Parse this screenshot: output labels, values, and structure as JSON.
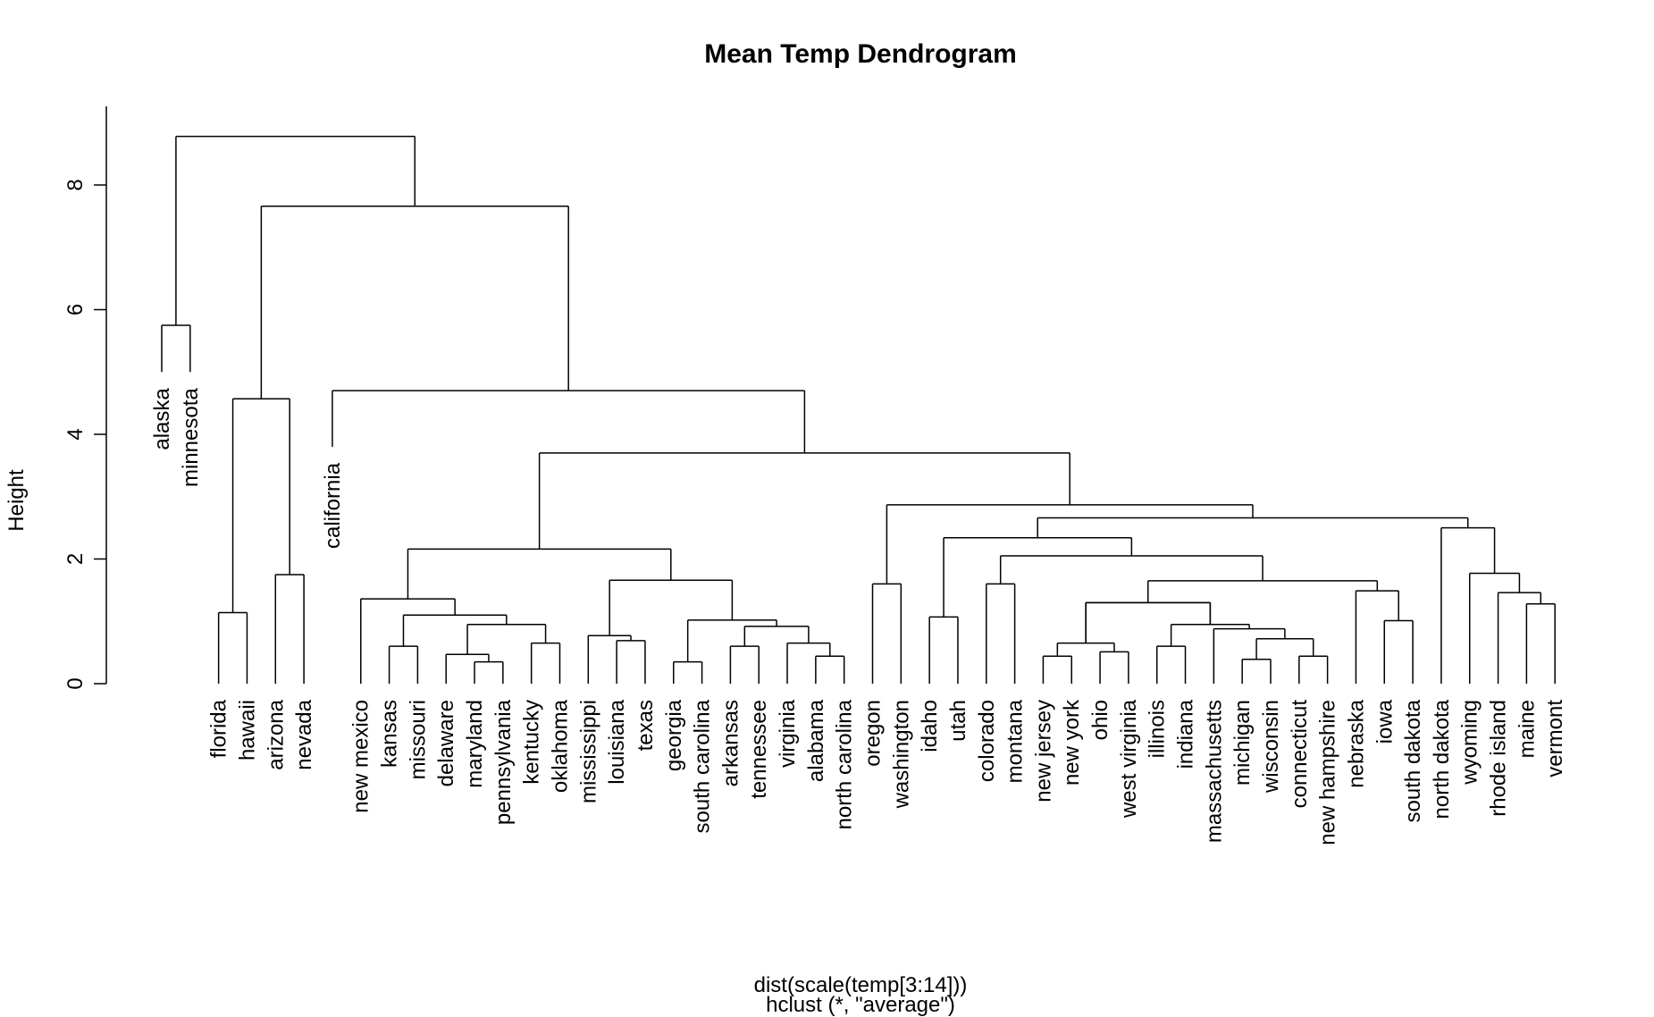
{
  "chart_data": {
    "type": "dendrogram",
    "title": "Mean Temp Dendrogram",
    "ylabel": "Height",
    "xlabel_lines": [
      "dist(scale(temp[3:14]))",
      "hclust (*, \"average\")"
    ],
    "ylim": [
      0,
      9.2
    ],
    "yticks": [
      0,
      2,
      4,
      6,
      8
    ],
    "leaves": [
      "alaska",
      "minnesota",
      "florida",
      "hawaii",
      "arizona",
      "nevada",
      "california",
      "new mexico",
      "kansas",
      "missouri",
      "delaware",
      "maryland",
      "pennsylvania",
      "kentucky",
      "oklahoma",
      "mississippi",
      "louisiana",
      "texas",
      "georgia",
      "south carolina",
      "arkansas",
      "tennessee",
      "virginia",
      "alabama",
      "north carolina",
      "oregon",
      "washington",
      "idaho",
      "utah",
      "colorado",
      "montana",
      "new jersey",
      "new york",
      "ohio",
      "west virginia",
      "illinois",
      "indiana",
      "massachusetts",
      "michigan",
      "wisconsin",
      "connecticut",
      "new hampshire",
      "nebraska",
      "iowa",
      "south dakota",
      "north dakota",
      "wyoming",
      "rhode island",
      "maine",
      "vermont"
    ],
    "merges": [
      {
        "a": "maryland",
        "b": "pennsylvania",
        "height": 0.35
      },
      {
        "a": "georgia",
        "b": "south carolina",
        "height": 0.35
      },
      {
        "a": "michigan",
        "b": "wisconsin",
        "height": 0.39
      },
      {
        "a": "alabama",
        "b": "north carolina",
        "height": 0.44
      },
      {
        "a": "new jersey",
        "b": "new york",
        "height": 0.44
      },
      {
        "a": "connecticut",
        "b": "new hampshire",
        "height": 0.44
      },
      {
        "a": "delaware",
        "b": "maryland+pennsylvania",
        "height": 0.47
      },
      {
        "a": "ohio",
        "b": "west virginia",
        "height": 0.51
      },
      {
        "a": "arkansas",
        "b": "tennessee",
        "height": 0.6
      },
      {
        "a": "kansas",
        "b": "missouri",
        "height": 0.6
      },
      {
        "a": "illinois",
        "b": "indiana",
        "height": 0.6
      },
      {
        "a": "kentucky",
        "b": "oklahoma",
        "height": 0.65
      },
      {
        "a": "virginia",
        "b": "alabama+north carolina",
        "height": 0.65
      },
      {
        "a": "new jersey+new york",
        "b": "ohio+west virginia",
        "height": 0.65
      },
      {
        "a": "louisiana",
        "b": "texas",
        "height": 0.69
      },
      {
        "a": "michigan+wisconsin",
        "b": "connecticut+new hampshire",
        "height": 0.72
      },
      {
        "a": "mississippi",
        "b": "louisiana+texas",
        "height": 0.77
      },
      {
        "a": "massachusetts",
        "b": "michigan+wisconsin+connecticut+new hampshire",
        "height": 0.88
      },
      {
        "a": "arkansas+tennessee",
        "b": "virginia+alabama+north carolina",
        "height": 0.92
      },
      {
        "a": "delaware+maryland+pennsylvania",
        "b": "kentucky+oklahoma",
        "height": 0.95
      },
      {
        "a": "illinois+indiana",
        "b": "massachusetts+michigan+wisconsin+connecticut+new hampshire",
        "height": 0.95
      },
      {
        "a": "iowa",
        "b": "south dakota",
        "height": 1.01
      },
      {
        "a": "georgia+south carolina",
        "b": "arkansas+tennessee+virginia+alabama+north carolina",
        "height": 1.02
      },
      {
        "a": "idaho",
        "b": "utah",
        "height": 1.07
      },
      {
        "a": "kansas+missouri",
        "b": "delaware+maryland+pennsylvania+kentucky+oklahoma",
        "height": 1.1
      },
      {
        "a": "maine",
        "b": "vermont",
        "height": 1.28
      },
      {
        "a": "new jersey+new york+ohio+west virginia",
        "b": "illinois+indiana+massachusetts+michigan+wisconsin+connecticut+new hampshire",
        "height": 1.3
      },
      {
        "a": "nevada",
        "b": "arizona",
        "height": 1.75
      },
      {
        "a": "florida",
        "b": "hawaii",
        "height": 1.14
      },
      {
        "a": "new mexico",
        "b": "kansas+missouri+delaware+maryland+pennsylvania+kentucky+oklahoma",
        "height": 1.36
      },
      {
        "a": "rhode island",
        "b": "maine+vermont",
        "height": 1.46
      },
      {
        "a": "nebraska",
        "b": "iowa+south dakota",
        "height": 1.49
      },
      {
        "a": "oregon",
        "b": "washington",
        "height": 1.6
      },
      {
        "a": "colorado",
        "b": "montana",
        "height": 1.6
      },
      {
        "a": "nebraska+iowa+south dakota",
        "b": "new jersey+...+new hampshire",
        "height": 1.65
      },
      {
        "a": "mississippi+louisiana+texas",
        "b": "georgia+...+north carolina",
        "height": 1.66
      },
      {
        "a": "wyoming",
        "b": "rhode island+maine+vermont",
        "height": 1.77
      },
      {
        "a": "colorado+montana",
        "b": "new jersey+...+south dakota",
        "height": 2.05
      },
      {
        "a": "new mexico+...+oklahoma",
        "b": "mississippi+...+north carolina",
        "height": 2.16
      },
      {
        "a": "idaho+utah",
        "b": "colorado+...+south dakota",
        "height": 2.34
      },
      {
        "a": "north dakota",
        "b": "wyoming+rhode island+maine+vermont",
        "height": 2.5
      },
      {
        "a": "idaho+...+south dakota",
        "b": "north dakota+...+vermont",
        "height": 2.66
      },
      {
        "a": "oregon+washington",
        "b": "idaho+...+vermont",
        "height": 2.87
      },
      {
        "a": "new mexico+...+north carolina",
        "b": "oregon+...+vermont",
        "height": 3.7
      },
      {
        "a": "florida+hawaii",
        "b": "arizona+nevada",
        "height": 4.57
      },
      {
        "a": "california",
        "b": "new mexico+...+vermont",
        "height": 4.7
      },
      {
        "a": "alaska",
        "b": "minnesota",
        "height": 5.75
      },
      {
        "a": "florida+hawaii+arizona+nevada",
        "b": "california+...+vermont",
        "height": 7.66
      },
      {
        "a": "alaska+minnesota",
        "b": "florida+...+vermont",
        "height": 8.78
      }
    ]
  }
}
